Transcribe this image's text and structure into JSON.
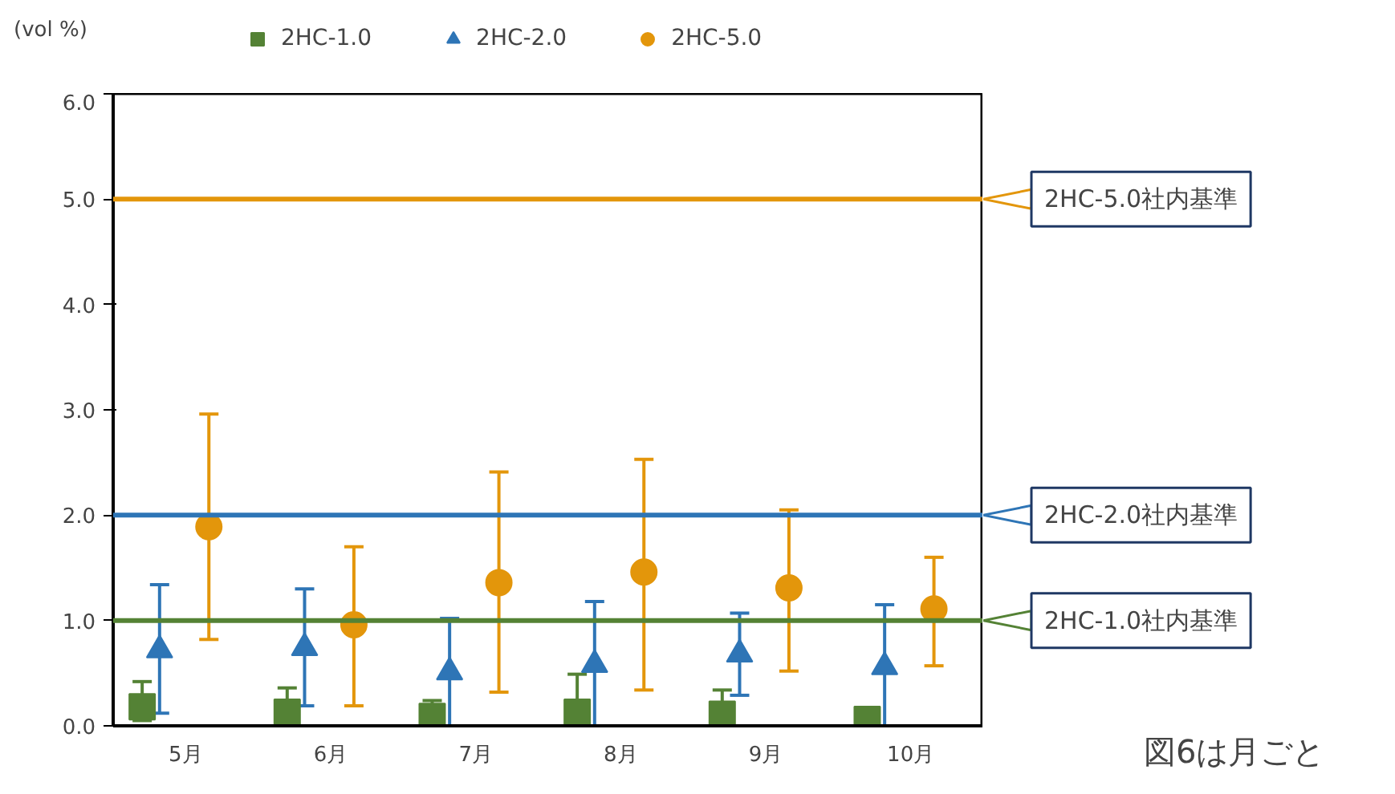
{
  "chart_data": {
    "type": "scatter",
    "ylabel": "(vol %)",
    "categories": [
      "5月",
      "6月",
      "7月",
      "8月",
      "9月",
      "10月"
    ],
    "series": [
      {
        "name": "2HC-1.0",
        "color": "#548235",
        "marker": "square",
        "values": [
          0.18,
          0.13,
          0.09,
          0.13,
          0.11,
          0.06
        ],
        "errors": [
          [
            0.05,
            0.42
          ],
          [
            0,
            0.36
          ],
          [
            0,
            0.24
          ],
          [
            0,
            0.49
          ],
          [
            0,
            0.34
          ],
          null
        ]
      },
      {
        "name": "2HC-2.0",
        "color": "#2e75b6",
        "marker": "triangle",
        "values": [
          0.72,
          0.74,
          0.51,
          0.58,
          0.68,
          0.56
        ],
        "errors": [
          [
            0.12,
            1.34
          ],
          [
            0.19,
            1.3
          ],
          [
            0,
            1.02
          ],
          [
            0,
            1.18
          ],
          [
            0.29,
            1.07
          ],
          [
            0,
            1.15
          ]
        ]
      },
      {
        "name": "2HC-5.0",
        "color": "#e3960b",
        "marker": "circle",
        "values": [
          1.89,
          0.96,
          1.36,
          1.46,
          1.31,
          1.11
        ],
        "errors": [
          [
            0.82,
            2.96
          ],
          [
            0.19,
            1.7
          ],
          [
            0.32,
            2.41
          ],
          [
            0.34,
            2.53
          ],
          [
            0.52,
            2.05
          ],
          [
            0.57,
            1.6
          ]
        ]
      }
    ],
    "ylim": [
      0,
      6
    ],
    "yticks": [
      {
        "value": 0,
        "label": "0.0"
      },
      {
        "value": 1,
        "label": "1.0"
      },
      {
        "value": 2,
        "label": "2.0"
      },
      {
        "value": 3,
        "label": "3.0"
      },
      {
        "value": 4,
        "label": "4.0"
      },
      {
        "value": 5,
        "label": "5.0"
      },
      {
        "value": 6,
        "label": "6.0"
      }
    ],
    "ref_lines": [
      {
        "axis": "y",
        "value": 5,
        "label": "2HC-5.0社内基準",
        "color": "#e3960b"
      },
      {
        "axis": "y",
        "value": 2,
        "label": "2HC-2.0社内基準",
        "color": "#2e75b6"
      },
      {
        "axis": "y",
        "value": 1,
        "label": "2HC-1.0社内基準",
        "color": "#548235"
      }
    ],
    "annotations": [
      "図6は月ごと"
    ],
    "grid": false,
    "legend": "top"
  }
}
